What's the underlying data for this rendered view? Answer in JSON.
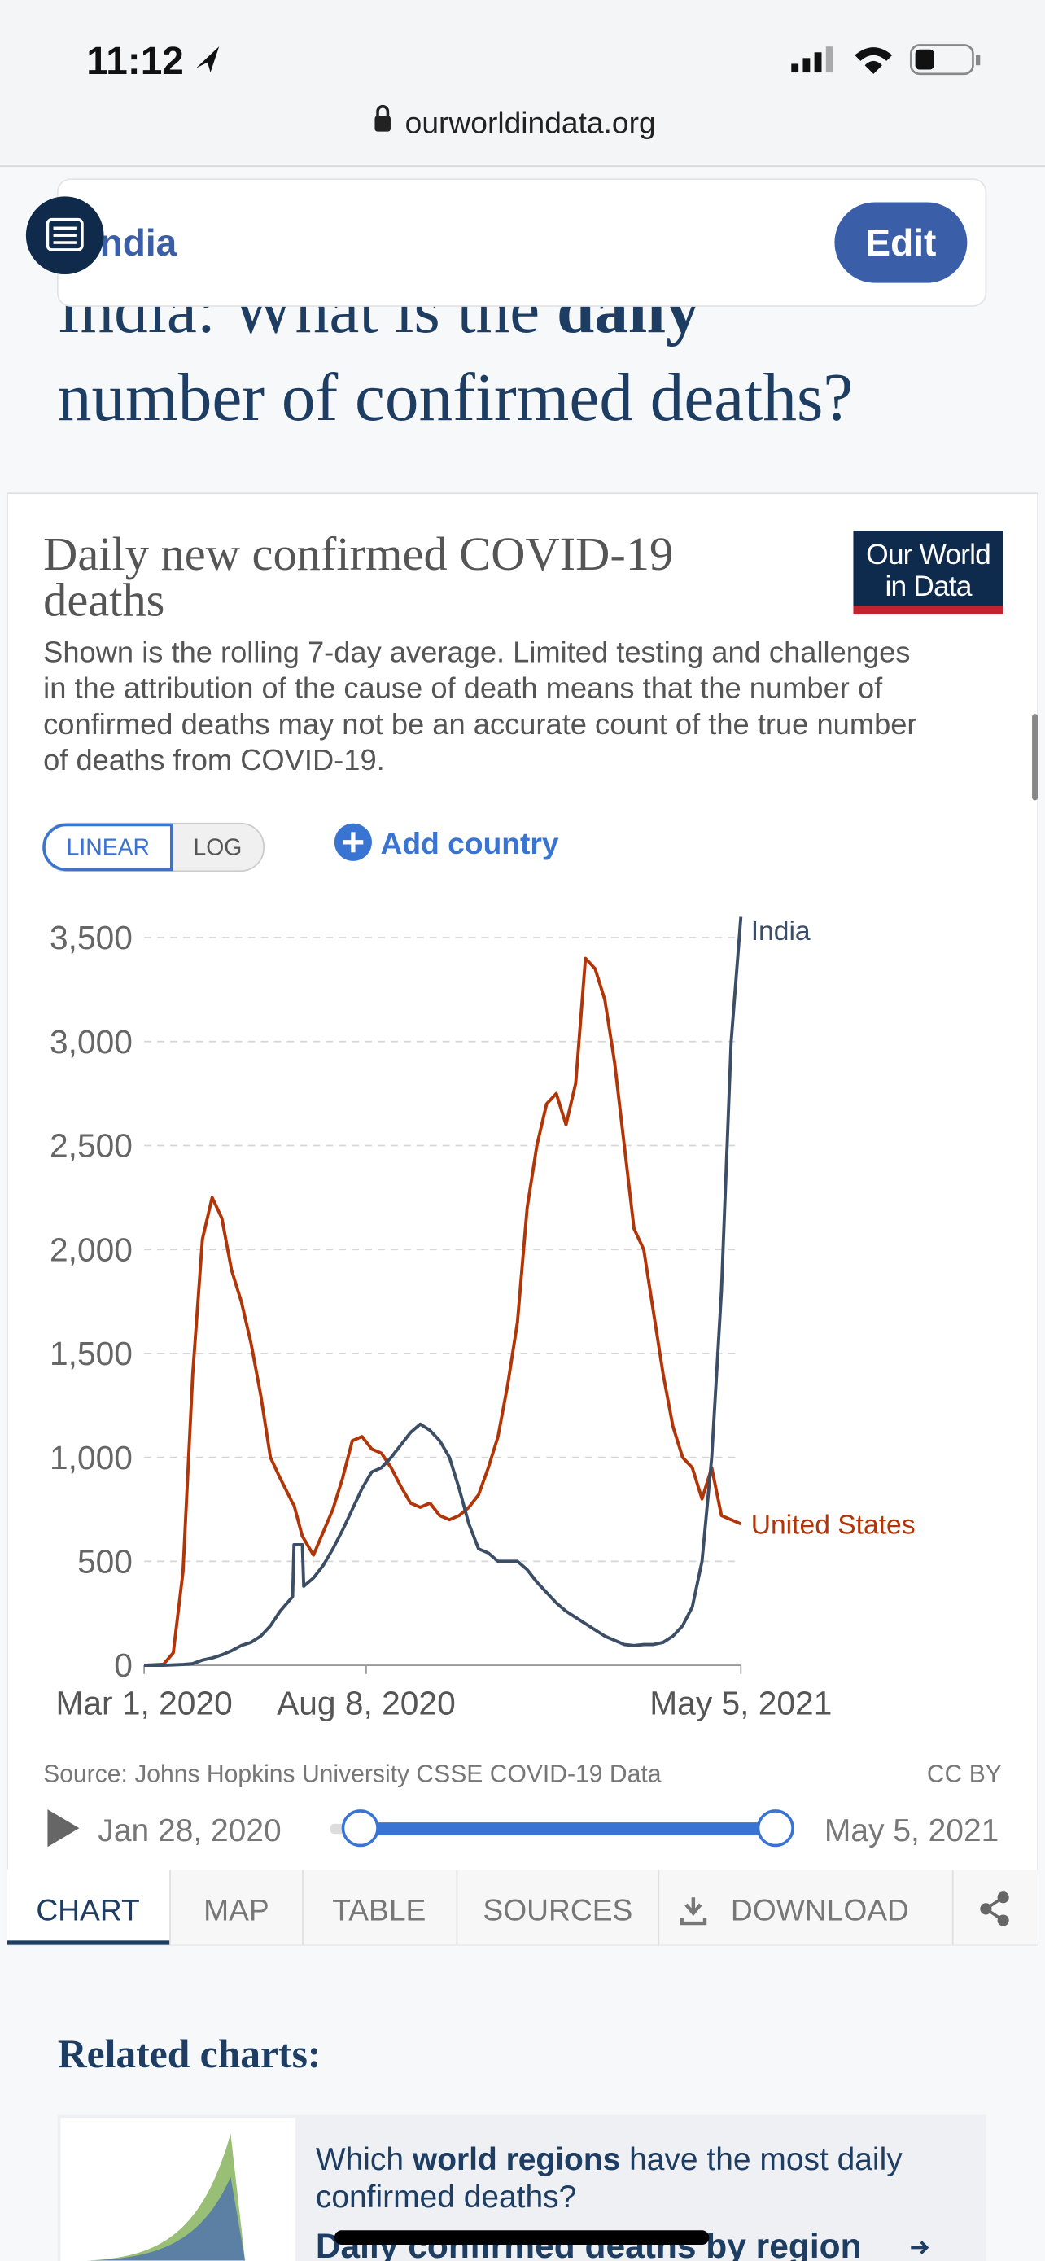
{
  "status_bar": {
    "time": "11:12"
  },
  "url": "ourworldindata.org",
  "sticky_header": {
    "country": "India",
    "edit_button": "Edit"
  },
  "heading": {
    "parts": [
      "India: What is the ",
      "daily",
      "number of confirmed deaths?"
    ]
  },
  "chart_data": {
    "type": "line",
    "title": [
      "Daily new confirmed COVID-19",
      "deaths"
    ],
    "logo": [
      "Our World",
      "in Data"
    ],
    "subtitle": [
      "Shown is the rolling 7-day average. Limited testing and challenges",
      "in the attribution of the cause of death means that the number of",
      "confirmed deaths may not be an accurate count of the true number",
      "of deaths from COVID-19."
    ],
    "scale_buttons": [
      "LINEAR",
      "LOG"
    ],
    "add_country": "Add country",
    "x": [
      "2020-03-01",
      "2020-03-15",
      "2020-03-22",
      "2020-03-29",
      "2020-04-05",
      "2020-04-12",
      "2020-04-19",
      "2020-04-26",
      "2020-05-03",
      "2020-05-10",
      "2020-05-17",
      "2020-05-24",
      "2020-05-31",
      "2020-06-07",
      "2020-06-16",
      "2020-06-17",
      "2020-06-23",
      "2020-06-24",
      "2020-07-01",
      "2020-07-08",
      "2020-07-15",
      "2020-07-22",
      "2020-07-29",
      "2020-08-05",
      "2020-08-12",
      "2020-08-19",
      "2020-08-26",
      "2020-09-02",
      "2020-09-09",
      "2020-09-16",
      "2020-09-23",
      "2020-09-30",
      "2020-10-07",
      "2020-10-14",
      "2020-10-21",
      "2020-10-28",
      "2020-11-04",
      "2020-11-11",
      "2020-11-18",
      "2020-11-25",
      "2020-12-02",
      "2020-12-09",
      "2020-12-16",
      "2020-12-23",
      "2020-12-30",
      "2021-01-06",
      "2021-01-13",
      "2021-01-20",
      "2021-01-27",
      "2021-02-03",
      "2021-02-10",
      "2021-02-17",
      "2021-02-24",
      "2021-03-03",
      "2021-03-10",
      "2021-03-17",
      "2021-03-24",
      "2021-03-31",
      "2021-04-07",
      "2021-04-14",
      "2021-04-21",
      "2021-04-28",
      "2021-05-05"
    ],
    "series": [
      {
        "name": "United States",
        "color": "#b13507",
        "values": [
          0,
          5,
          60,
          450,
          1400,
          2050,
          2250,
          2150,
          1900,
          1750,
          1550,
          1300,
          1000,
          900,
          780,
          770,
          620,
          610,
          530,
          640,
          750,
          900,
          1080,
          1100,
          1040,
          1020,
          950,
          860,
          780,
          760,
          780,
          720,
          700,
          720,
          760,
          820,
          950,
          1100,
          1350,
          1650,
          2200,
          2500,
          2700,
          2750,
          2600,
          2800,
          3400,
          3350,
          3200,
          2900,
          2500,
          2100,
          2000,
          1700,
          1400,
          1150,
          1000,
          950,
          800,
          950,
          720,
          700,
          680
        ]
      },
      {
        "name": "India",
        "color": "#3c4e66",
        "values": [
          0,
          0,
          2,
          4,
          8,
          25,
          35,
          50,
          70,
          95,
          110,
          140,
          190,
          260,
          330,
          580,
          580,
          380,
          420,
          480,
          560,
          650,
          750,
          850,
          930,
          950,
          1000,
          1060,
          1120,
          1160,
          1130,
          1080,
          1000,
          850,
          680,
          560,
          540,
          500,
          500,
          500,
          460,
          400,
          350,
          300,
          260,
          230,
          200,
          170,
          140,
          120,
          100,
          95,
          100,
          100,
          110,
          140,
          190,
          280,
          500,
          1000,
          1800,
          3000,
          3600
        ]
      }
    ],
    "xlim": [
      "2020-03-01",
      "2021-05-05"
    ],
    "xticks": [
      {
        "value": "2020-03-01",
        "label": "Mar 1, 2020"
      },
      {
        "value": "2020-08-08",
        "label": "Aug 8, 2020"
      },
      {
        "value": "2021-05-05",
        "label": "May 5, 2021"
      }
    ],
    "ylim": [
      0,
      3640
    ],
    "yticks": [
      0,
      500,
      {
        "value": 1000,
        "label": "1,000"
      },
      {
        "value": 1500,
        "label": "1,500"
      },
      {
        "value": 2000,
        "label": "2,000"
      },
      {
        "value": 2500,
        "label": "2,500"
      },
      {
        "value": 3000,
        "label": "3,000"
      },
      {
        "value": 3500,
        "label": "3,500"
      }
    ],
    "grid": true,
    "source": "Source: Johns Hopkins University CSSE COVID-19 Data",
    "license": "CC BY",
    "timeline": {
      "start": "Jan 28, 2020",
      "end": "May 5, 2021"
    },
    "tabs": [
      "CHART",
      "MAP",
      "TABLE",
      "SOURCES",
      "DOWNLOAD"
    ]
  },
  "related": {
    "heading": "Related charts:",
    "question_parts": [
      "Which ",
      "world regions",
      " have the most daily",
      "confirmed deaths?"
    ],
    "link": "Daily confirmed deaths by region"
  }
}
